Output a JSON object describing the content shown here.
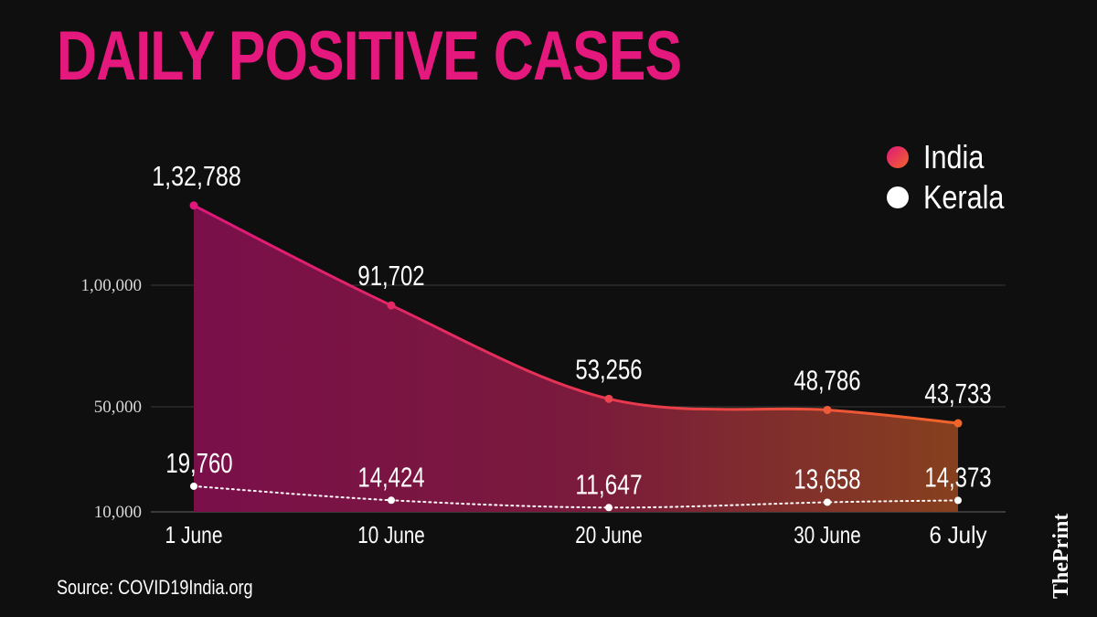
{
  "title": "DAILY POSITIVE CASES",
  "source": "Source: COVID19India.org",
  "brand": "ThePrint",
  "colors": {
    "background": "#0f0f0f",
    "title": "#e5197d",
    "india_start": "#e0177c",
    "india_end": "#f2652a",
    "kerala": "#ffffff",
    "grid": "#444444"
  },
  "chart_data": {
    "type": "area",
    "title": "DAILY POSITIVE CASES",
    "xlabel": "",
    "ylabel": "",
    "x": [
      "1 June",
      "10 June",
      "20 June",
      "30 June",
      "6 July"
    ],
    "ytick_labels": [
      "10,000",
      "50,000",
      "1,00,000"
    ],
    "ytick_values": [
      10000,
      50000,
      100000
    ],
    "grid": true,
    "legend_position": "top-right",
    "series": [
      {
        "name": "India",
        "values": [
          132788,
          91702,
          53256,
          48786,
          43733
        ],
        "labels": [
          "1,32,788",
          "91,702",
          "53,256",
          "48,786",
          "43,733"
        ],
        "style": "area"
      },
      {
        "name": "Kerala",
        "values": [
          19760,
          14424,
          11647,
          13658,
          14373
        ],
        "labels": [
          "19,760",
          "14,424",
          "11,647",
          "13,658",
          "14,373"
        ],
        "style": "dotted-line"
      }
    ]
  }
}
